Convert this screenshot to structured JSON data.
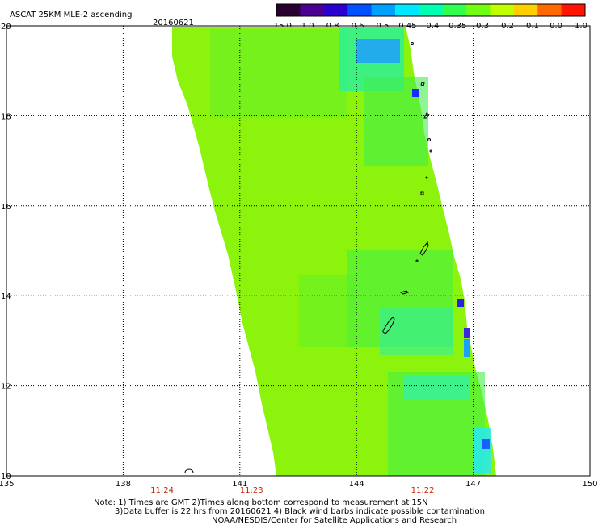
{
  "header": {
    "title": "ASCAT 25KM MLE-2 ascending",
    "date": "20160621"
  },
  "colorbar": {
    "labels": [
      "-15.0",
      "-1.0",
      "-0.8",
      "-0.6",
      "-0.5",
      "-0.45",
      "-0.4",
      "-0.35",
      "-0.3",
      "-0.2",
      "-0.1",
      "0.0",
      "1.0"
    ],
    "colors": [
      "#2a0030",
      "#4a0090",
      "#2a00d0",
      "#0050ff",
      "#00a0ff",
      "#00e8ff",
      "#00ffb0",
      "#30ff50",
      "#70ff10",
      "#c0ff00",
      "#ffd000",
      "#ff6a00",
      "#ff1500"
    ]
  },
  "map": {
    "lat_labels": [
      "20",
      "18",
      "16",
      "14",
      "12",
      "10"
    ],
    "lon_labels": [
      "135",
      "138",
      "141",
      "144",
      "147",
      "150"
    ],
    "lat_values": [
      20,
      18,
      16,
      14,
      12,
      10
    ],
    "lon_values": [
      135,
      138,
      141,
      144,
      147,
      150
    ],
    "lon_range": [
      135,
      150
    ],
    "lat_range": [
      10,
      20
    ],
    "swath_color": "#8cf40c",
    "time_labels": [
      {
        "text": "11:24",
        "lon": 139.0
      },
      {
        "text": "11:23",
        "lon": 141.3
      },
      {
        "text": "11:22",
        "lon": 145.7
      }
    ]
  },
  "footer": {
    "line1": "Note: 1) Times are GMT 2)Times along bottom correspond to measurement at 15N",
    "line2": "3)Data buffer is 22 hrs from 20160621 4) Black wind barbs indicate possible contamination",
    "line3": "NOAA/NESDIS/Center for Satellite Applications and Research"
  }
}
